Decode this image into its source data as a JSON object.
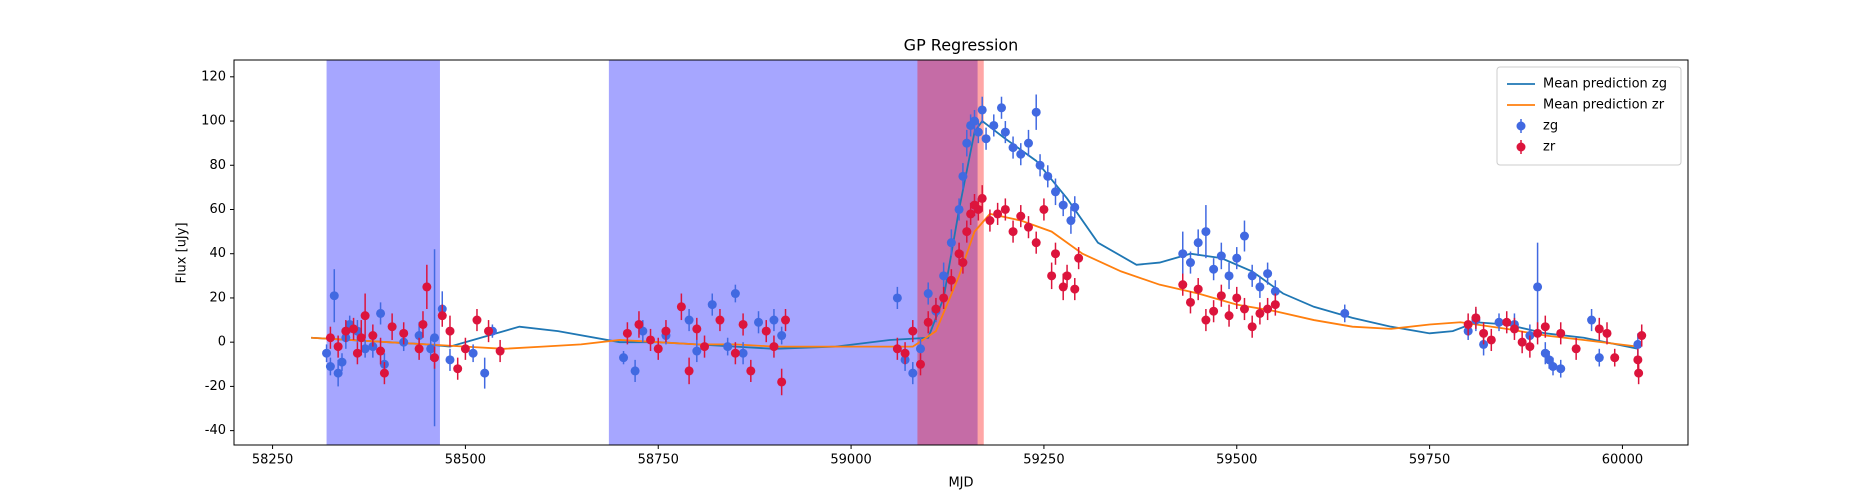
{
  "chart_data": {
    "type": "errorbar",
    "title": "GP Regression",
    "x_label": "MJD",
    "y_label": "Flux [uJy]",
    "xlim": [
      58200,
      60085
    ],
    "ylim": [
      -46.5,
      127.6
    ],
    "xticks": [
      58250,
      58500,
      58750,
      59000,
      59250,
      59500,
      59750,
      60000
    ],
    "yticks": [
      -40,
      -20,
      0,
      20,
      40,
      60,
      80,
      100,
      120
    ],
    "legend": "upper right",
    "spans": [
      {
        "x0": 58320,
        "x1": 58467,
        "color": "#0000ff",
        "alpha": 0.35
      },
      {
        "x0": 58686,
        "x1": 59164,
        "color": "#0000ff",
        "alpha": 0.35
      },
      {
        "x0": 59086,
        "x1": 59172,
        "color": "#ff0000",
        "alpha": 0.35
      }
    ],
    "series": [
      {
        "name": "Mean prediction zg",
        "kind": "line",
        "color": "#1f77b4",
        "x": [
          58300,
          58350,
          58400,
          58450,
          58480,
          58520,
          58570,
          58620,
          58700,
          58750,
          58800,
          58850,
          58900,
          58980,
          59050,
          59100,
          59120,
          59140,
          59160,
          59170,
          59200,
          59240,
          59280,
          59320,
          59370,
          59400,
          59440,
          59480,
          59520,
          59560,
          59600,
          59650,
          59700,
          59750,
          59780,
          59810,
          59850,
          59900,
          59950,
          60020
        ],
        "values": [
          2,
          1,
          0,
          -1,
          -2,
          2,
          7,
          5,
          0,
          0,
          -1,
          -2,
          -3,
          -2,
          1,
          2,
          20,
          60,
          95,
          100,
          92,
          82,
          65,
          45,
          35,
          36,
          40,
          38,
          32,
          22,
          16,
          11,
          7,
          4,
          5,
          9,
          8,
          4,
          2,
          -3
        ]
      },
      {
        "name": "Mean prediction zr",
        "kind": "line",
        "color": "#ff7f0e",
        "x": [
          58300,
          58350,
          58400,
          58450,
          58500,
          58550,
          58600,
          58650,
          58700,
          58750,
          58800,
          58850,
          58900,
          58950,
          59000,
          59080,
          59110,
          59140,
          59160,
          59180,
          59220,
          59260,
          59300,
          59350,
          59400,
          59450,
          59500,
          59550,
          59600,
          59650,
          59700,
          59750,
          59790,
          59850,
          59900,
          59950,
          60020
        ],
        "values": [
          2,
          1,
          0,
          -1,
          -2,
          -3,
          -2,
          -1,
          1,
          0,
          -1,
          -1,
          -2,
          -2,
          -2,
          -2,
          5,
          30,
          50,
          58,
          55,
          50,
          40,
          32,
          26,
          22,
          17,
          14,
          10,
          7,
          6,
          8,
          9,
          6,
          3,
          1,
          -2
        ]
      },
      {
        "name": "zg",
        "kind": "points",
        "color": "#4169e1",
        "x": [
          58320,
          58325,
          58330,
          58335,
          58340,
          58345,
          58350,
          58360,
          58370,
          58380,
          58390,
          58395,
          58420,
          58440,
          58455,
          58460,
          58470,
          58480,
          58510,
          58525,
          58535,
          58705,
          58720,
          58730,
          58760,
          58790,
          58800,
          58820,
          58840,
          58850,
          58860,
          58880,
          58900,
          58910,
          59060,
          59070,
          59080,
          59090,
          59100,
          59110,
          59120,
          59130,
          59140,
          59145,
          59150,
          59155,
          59160,
          59165,
          59170,
          59175,
          59185,
          59195,
          59200,
          59210,
          59220,
          59230,
          59240,
          59245,
          59255,
          59265,
          59275,
          59285,
          59290,
          59430,
          59440,
          59450,
          59460,
          59470,
          59480,
          59490,
          59500,
          59510,
          59520,
          59530,
          59540,
          59550,
          59640,
          59800,
          59810,
          59820,
          59840,
          59860,
          59880,
          59890,
          59900,
          59905,
          59910,
          59920,
          59960,
          59970,
          60020
        ],
        "values": [
          -5,
          -11,
          21,
          -14,
          -9,
          2,
          8,
          5,
          -3,
          -2,
          13,
          -10,
          0,
          3,
          -3,
          2,
          15,
          -8,
          -5,
          -14,
          5,
          -7,
          -13,
          5,
          3,
          10,
          -4,
          17,
          -2,
          22,
          -5,
          9,
          10,
          3,
          20,
          -8,
          -14,
          -3,
          22,
          14,
          30,
          45,
          60,
          75,
          90,
          98,
          100,
          95,
          105,
          92,
          98,
          106,
          95,
          88,
          85,
          90,
          104,
          80,
          75,
          68,
          62,
          55,
          61,
          40,
          36,
          45,
          50,
          33,
          39,
          30,
          38,
          48,
          30,
          25,
          31,
          23,
          13,
          5,
          10,
          -1,
          9,
          8,
          3,
          25,
          -5,
          -8,
          -11,
          -12,
          10,
          -7,
          -1
        ],
        "errors": [
          4,
          4,
          12,
          6,
          4,
          5,
          4,
          5,
          4,
          5,
          5,
          5,
          4,
          6,
          5,
          40,
          8,
          5,
          4,
          7,
          3,
          3,
          5,
          5,
          4,
          5,
          5,
          5,
          4,
          4,
          5,
          5,
          5,
          4,
          5,
          5,
          5,
          5,
          5,
          5,
          6,
          6,
          5,
          6,
          6,
          5,
          5,
          5,
          6,
          5,
          5,
          5,
          5,
          5,
          5,
          6,
          8,
          5,
          5,
          6,
          5,
          6,
          5,
          10,
          5,
          6,
          12,
          5,
          6,
          6,
          5,
          7,
          5,
          5,
          5,
          5,
          4,
          4,
          5,
          5,
          4,
          5,
          5,
          20,
          5,
          4,
          4,
          4,
          5,
          4,
          5
        ]
      },
      {
        "name": "zr",
        "kind": "points",
        "color": "#dc143c",
        "x": [
          58325,
          58335,
          58345,
          58355,
          58360,
          58365,
          58370,
          58380,
          58390,
          58395,
          58405,
          58420,
          58440,
          58445,
          58450,
          58460,
          58470,
          58480,
          58490,
          58500,
          58515,
          58530,
          58545,
          58710,
          58725,
          58740,
          58750,
          58760,
          58780,
          58790,
          58800,
          58810,
          58830,
          58850,
          58860,
          58870,
          58890,
          58900,
          58910,
          58915,
          59060,
          59070,
          59080,
          59090,
          59100,
          59110,
          59120,
          59130,
          59140,
          59145,
          59150,
          59155,
          59160,
          59165,
          59170,
          59180,
          59190,
          59200,
          59210,
          59220,
          59230,
          59240,
          59250,
          59260,
          59265,
          59275,
          59280,
          59290,
          59295,
          59430,
          59440,
          59450,
          59460,
          59470,
          59480,
          59490,
          59500,
          59510,
          59520,
          59530,
          59540,
          59550,
          59800,
          59810,
          59820,
          59830,
          59850,
          59860,
          59870,
          59880,
          59890,
          59900,
          59920,
          59940,
          59970,
          59980,
          59990,
          60020,
          60021,
          60025
        ],
        "values": [
          2,
          -2,
          5,
          6,
          -5,
          2,
          12,
          3,
          -4,
          -14,
          7,
          4,
          -3,
          8,
          25,
          -7,
          12,
          5,
          -12,
          -3,
          10,
          5,
          -4,
          4,
          8,
          1,
          -3,
          5,
          16,
          -13,
          6,
          -2,
          10,
          -5,
          8,
          -13,
          5,
          -2,
          -18,
          10,
          -3,
          -5,
          5,
          -10,
          9,
          15,
          20,
          28,
          40,
          36,
          50,
          58,
          62,
          60,
          65,
          55,
          58,
          60,
          50,
          57,
          52,
          45,
          60,
          30,
          40,
          25,
          30,
          24,
          38,
          26,
          18,
          24,
          10,
          14,
          21,
          12,
          20,
          15,
          7,
          13,
          15,
          17,
          8,
          11,
          4,
          1,
          9,
          6,
          0,
          -2,
          4,
          7,
          4,
          -3,
          6,
          4,
          -7,
          -8,
          -14,
          3
        ],
        "errors": [
          5,
          5,
          5,
          5,
          5,
          8,
          10,
          5,
          6,
          5,
          6,
          5,
          5,
          6,
          10,
          5,
          5,
          7,
          5,
          5,
          5,
          5,
          5,
          5,
          6,
          5,
          5,
          5,
          6,
          6,
          5,
          5,
          5,
          5,
          5,
          5,
          5,
          5,
          6,
          5,
          5,
          5,
          5,
          5,
          5,
          5,
          5,
          5,
          5,
          5,
          5,
          5,
          5,
          5,
          6,
          5,
          5,
          5,
          5,
          5,
          5,
          5,
          5,
          6,
          5,
          6,
          5,
          5,
          5,
          5,
          5,
          5,
          5,
          5,
          5,
          5,
          5,
          5,
          5,
          5,
          5,
          5,
          5,
          5,
          5,
          5,
          5,
          5,
          5,
          5,
          5,
          5,
          5,
          5,
          5,
          5,
          4,
          5,
          5,
          5
        ]
      }
    ]
  }
}
